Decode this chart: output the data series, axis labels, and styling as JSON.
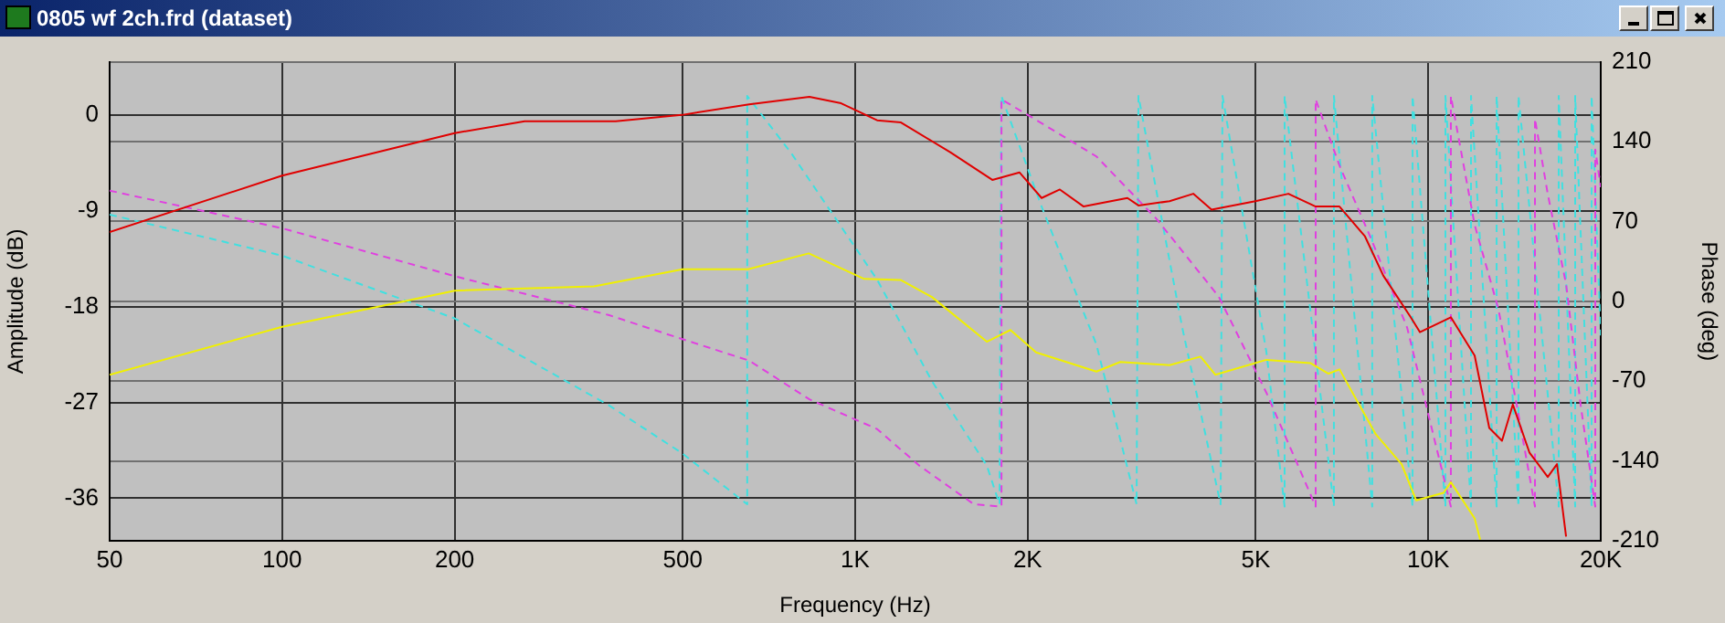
{
  "chart_data": {
    "type": "line",
    "title": "0805 wf 2ch.frd (dataset)",
    "xlabel": "Frequency (Hz)",
    "ylabel": "Amplitude (dB)",
    "y2label": "Phase (deg)",
    "log": "x",
    "grid": true,
    "legend": false,
    "marker": "none",
    "xlim": [
      50,
      20000
    ],
    "xticks": [
      50,
      100,
      200,
      500,
      {
        "value": 1000,
        "label": "1K"
      },
      {
        "value": 2000,
        "label": "2K"
      },
      {
        "value": 5000,
        "label": "5K"
      },
      {
        "value": 10000,
        "label": "10K"
      },
      {
        "value": 20000,
        "label": "20K"
      }
    ],
    "ylim": [
      -40,
      5
    ],
    "yticks": [
      0,
      -9,
      -18,
      -27,
      -36
    ],
    "y2lim": [
      -210,
      210
    ],
    "y2ticks": [
      210,
      140,
      70,
      0,
      -70,
      -140,
      -210
    ],
    "series": [
      {
        "color": "#e00000",
        "line_style": "solid",
        "x": [
          50,
          100,
          200,
          265,
          382,
          498,
          653,
          832,
          945,
          1092,
          1202,
          1465,
          1735,
          1936,
          2115,
          2276,
          2504,
          2986,
          3121,
          3536,
          3890,
          4187,
          4993,
          5700,
          6362,
          7000,
          7755,
          8350,
          9320,
          9670,
          10952,
          12050,
          12780,
          13450,
          14050,
          15015,
          16165,
          16775,
          17400
        ],
        "values": [
          -11.0,
          -5.7,
          -1.7,
          -0.6,
          -0.6,
          0.0,
          1.0,
          1.7,
          1.1,
          -0.5,
          -0.7,
          -3.5,
          -6.1,
          -5.4,
          -7.8,
          -7.0,
          -8.6,
          -7.8,
          -8.5,
          -8.1,
          -7.4,
          -8.9,
          -8.1,
          -7.4,
          -8.6,
          -8.6,
          -11.4,
          -15.1,
          -19.0,
          -20.4,
          -19.0,
          -22.6,
          -29.4,
          -30.6,
          -27.2,
          -31.7,
          -34.0,
          -32.8,
          -39.6
        ]
      },
      {
        "color": "#f0f000",
        "line_style": "solid",
        "x": [
          50,
          100,
          200,
          350,
          500,
          650,
          830,
          1037,
          1200,
          1361,
          1697,
          1866,
          2069,
          2636,
          2900,
          3536,
          4005,
          4250,
          5217,
          6225,
          6700,
          7000,
          8100,
          8985,
          9525,
          10636,
          10952,
          12050,
          12320
        ],
        "values": [
          -24.4,
          -19.9,
          -16.5,
          -16.1,
          -14.5,
          -14.5,
          -13.0,
          -15.4,
          -15.5,
          -17.1,
          -21.3,
          -20.2,
          -22.3,
          -24.1,
          -23.2,
          -23.5,
          -22.7,
          -24.4,
          -23.0,
          -23.3,
          -24.3,
          -23.9,
          -30.0,
          -32.8,
          -36.2,
          -35.5,
          -34.5,
          -37.9,
          -39.9
        ]
      },
      {
        "color": "#e040e0",
        "line_style": "dashed",
        "axis": "y2",
        "x": [
          50,
          100,
          200,
          371,
          498,
          653,
          832,
          1092,
          1293,
          1611,
          1800,
          1800,
          2069,
          2636,
          3359,
          4310,
          5217,
          6045,
          6362,
          6362,
          7000,
          7930,
          9186,
          10636,
          10952,
          10952,
          12050,
          13260,
          14270,
          15355,
          15355,
          16165,
          17400,
          18450,
          19565,
          19565,
          20000
        ],
        "values": [
          97,
          64,
          22,
          -12,
          -33,
          -52,
          -86,
          -112,
          -144,
          -178,
          -180,
          177,
          159,
          127,
          72,
          4,
          -80,
          -154,
          -180,
          177,
          119,
          56,
          -23,
          -154,
          -180,
          180,
          67,
          -7,
          -91,
          -180,
          160,
          94,
          15,
          -91,
          -180,
          133,
          100
        ]
      },
      {
        "color": "#40e0e0",
        "line_style": "dashed",
        "axis": "y2",
        "x": [
          50,
          100,
          200,
          371,
          498,
          648,
          648,
          773,
          1092,
          1361,
          1697,
          1786,
          1799,
          2115,
          2636,
          3098,
          3121,
          3721,
          4342,
          4375,
          5217,
          5615,
          5615,
          6845,
          6845,
          7985,
          7985,
          9390,
          9390,
          10715,
          10715,
          11876,
          11876,
          13163,
          13163,
          14371,
          14371,
          16894,
          16894,
          18048,
          18048,
          19281,
          19281,
          20000
        ],
        "values": [
          76,
          40,
          -15,
          -91,
          -133,
          -178,
          180,
          130,
          19,
          -70,
          -144,
          -178,
          180,
          83,
          -38,
          -178,
          180,
          -23,
          -178,
          180,
          -44,
          -180,
          180,
          -180,
          180,
          -180,
          180,
          -180,
          180,
          -180,
          180,
          -180,
          180,
          -180,
          180,
          -180,
          180,
          -180,
          180,
          -180,
          180,
          -180,
          180,
          -30
        ]
      }
    ]
  }
}
